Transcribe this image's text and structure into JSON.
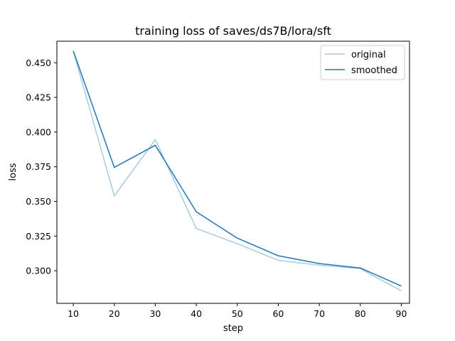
{
  "chart_data": {
    "type": "line",
    "title": "training loss of saves/ds7B/lora/sft",
    "xlabel": "step",
    "ylabel": "loss",
    "xlim": [
      6.0,
      92.0
    ],
    "ylim": [
      0.2765,
      0.4655
    ],
    "xticks": [
      10,
      20,
      30,
      40,
      50,
      60,
      70,
      80,
      90
    ],
    "yticks": [
      0.3,
      0.325,
      0.35,
      0.375,
      0.4,
      0.425,
      0.45
    ],
    "ytick_labels": [
      "0.300",
      "0.325",
      "0.350",
      "0.375",
      "0.400",
      "0.425",
      "0.450"
    ],
    "grid": false,
    "legend_position": "top-right",
    "x": [
      10,
      20,
      30,
      40,
      50,
      60,
      70,
      80,
      90
    ],
    "series": [
      {
        "name": "original",
        "color": "#a6cbe3",
        "values": [
          0.4585,
          0.354,
          0.3945,
          0.3305,
          0.3195,
          0.3075,
          0.304,
          0.3015,
          0.2855
        ]
      },
      {
        "name": "smoothed",
        "color": "#1f77b4",
        "values": [
          0.4585,
          0.3745,
          0.3905,
          0.3425,
          0.3235,
          0.3108,
          0.3052,
          0.302,
          0.289
        ]
      }
    ]
  }
}
